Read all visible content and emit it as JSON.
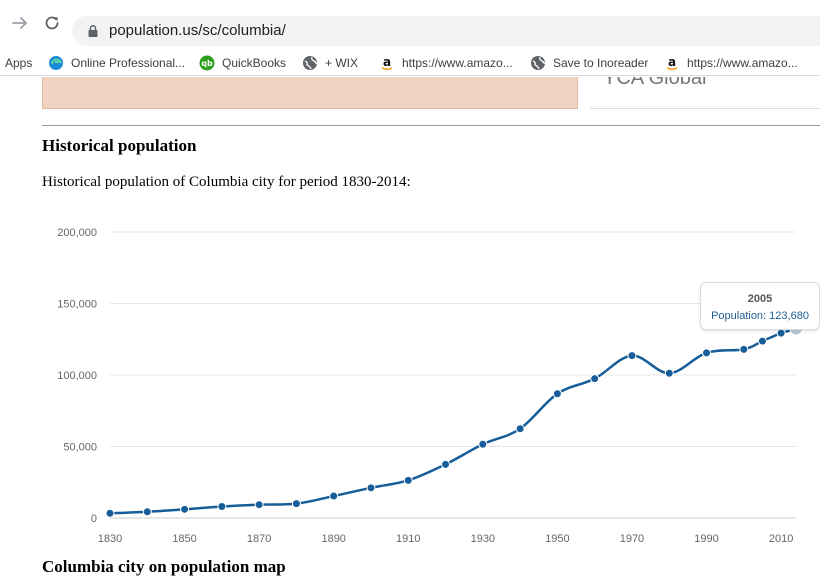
{
  "browser": {
    "url": "population.us/sc/columbia/",
    "bookmarks": [
      {
        "label": "Apps",
        "icon": "apps-icon"
      },
      {
        "label": "Online Professional...",
        "icon": "edge-icon"
      },
      {
        "label": "QuickBooks",
        "icon": "quickbooks-icon"
      },
      {
        "label": "+ WIX",
        "icon": "globe-icon"
      },
      {
        "label": "https://www.amazo...",
        "icon": "amazon-icon"
      },
      {
        "label": "Save to Inoreader",
        "icon": "globe-icon"
      },
      {
        "label": "https://www.amazo...",
        "icon": "amazon-icon"
      }
    ]
  },
  "ad": {
    "text": "YCA Global"
  },
  "section": {
    "title": "Historical population",
    "description": "Historical population of Columbia city for period 1830-2014:"
  },
  "next_section": {
    "title": "Columbia city on population map"
  },
  "tooltip": {
    "year": "2005",
    "label": "Population:",
    "value": "123,680"
  },
  "colors": {
    "line": "#175d99",
    "grid": "#e6e6e6",
    "axis_text": "#666666",
    "tooltip_text": "#1f5f96"
  },
  "chart_data": {
    "type": "line",
    "title": "Historical population",
    "xlabel": "",
    "ylabel": "",
    "x": [
      1830,
      1840,
      1850,
      1860,
      1870,
      1880,
      1890,
      1900,
      1910,
      1920,
      1930,
      1940,
      1950,
      1960,
      1970,
      1980,
      1990,
      2000,
      2005,
      2010,
      2014
    ],
    "series": [
      {
        "name": "Population",
        "values": [
          3310,
          4340,
          6060,
          8052,
          9298,
          10036,
          15353,
          21108,
          26319,
          37524,
          51581,
          62396,
          86914,
          97433,
          113542,
          101208,
          115475,
          117925,
          123680,
          129272,
          132067
        ]
      }
    ],
    "xticks": [
      1830,
      1850,
      1870,
      1890,
      1910,
      1930,
      1950,
      1970,
      1990,
      2010
    ],
    "yticks": [
      0,
      50000,
      100000,
      150000,
      200000
    ],
    "ytick_labels": [
      "0",
      "50,000",
      "100,000",
      "150,000",
      "200,000"
    ],
    "xlim": [
      1830,
      2014
    ],
    "ylim": [
      0,
      200000
    ],
    "grid": true,
    "highlight_index": 20
  }
}
